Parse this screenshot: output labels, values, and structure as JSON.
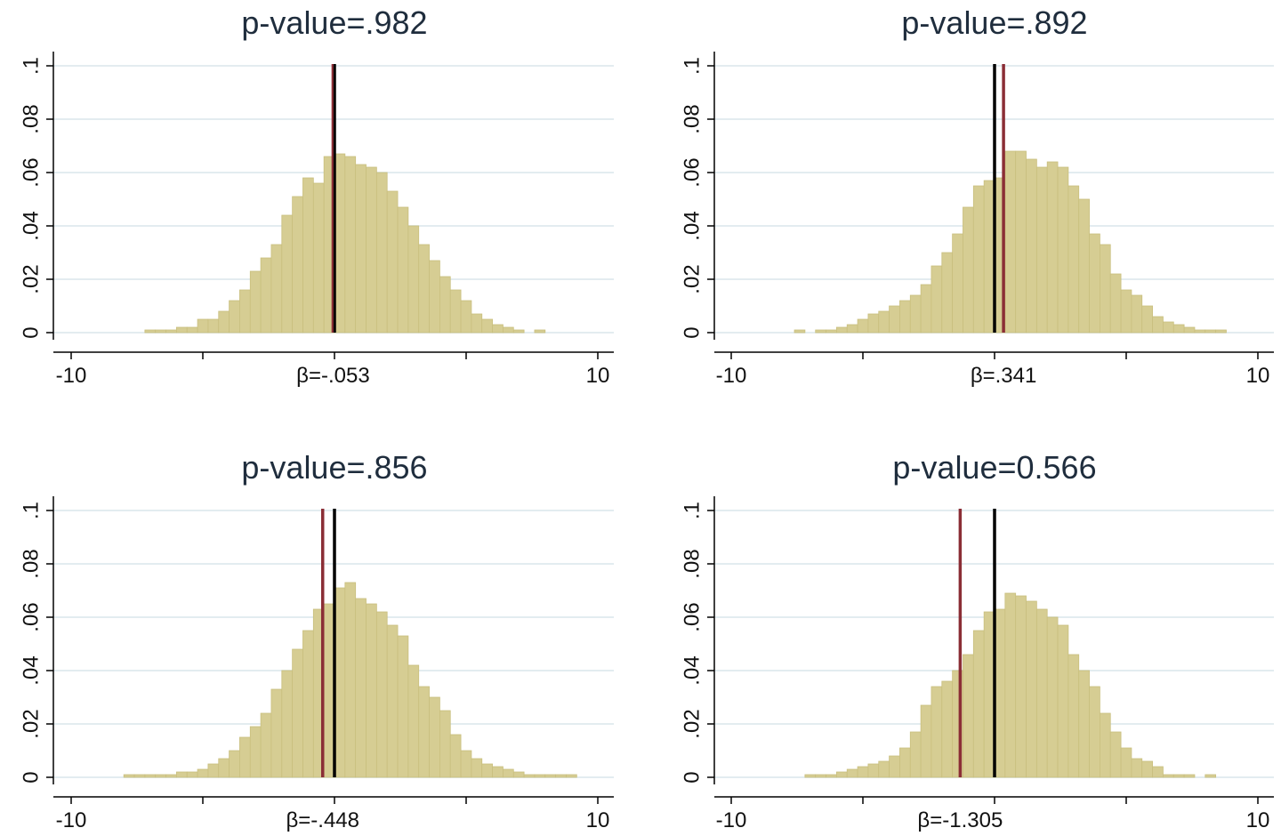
{
  "colors": {
    "bar_fill": "#d6cd93",
    "bar_stroke": "#c9bf7e",
    "beta_line": "#8b2e36",
    "reference_line": "#000000",
    "grid": "#e3ecf0",
    "title_text": "#1f2d3d"
  },
  "chart_data": [
    {
      "type": "bar",
      "title": "p-value=.982",
      "xlim": [
        -10,
        10
      ],
      "ylim": [
        0,
        0.1
      ],
      "xticks": [
        -10,
        -5,
        0,
        5,
        10
      ],
      "xtick_labels": [
        "-10",
        "",
        "",
        "",
        "10"
      ],
      "yticks": [
        0,
        0.02,
        0.04,
        0.06,
        0.08,
        0.1
      ],
      "ytick_labels": [
        "0",
        ".02",
        ".04",
        ".06",
        ".08",
        ".1"
      ],
      "beta_label": "β=-.053",
      "beta": -0.053,
      "reference": 0,
      "grid": true,
      "bin_width": 0.4,
      "bins": [
        [
          -7.2,
          0.001
        ],
        [
          -6.8,
          0.001
        ],
        [
          -6.4,
          0.001
        ],
        [
          -6.0,
          0.002
        ],
        [
          -5.6,
          0.002
        ],
        [
          -5.2,
          0.005
        ],
        [
          -4.8,
          0.005
        ],
        [
          -4.4,
          0.008
        ],
        [
          -4.0,
          0.012
        ],
        [
          -3.6,
          0.016
        ],
        [
          -3.2,
          0.023
        ],
        [
          -2.8,
          0.028
        ],
        [
          -2.4,
          0.033
        ],
        [
          -2.0,
          0.044
        ],
        [
          -1.6,
          0.051
        ],
        [
          -1.2,
          0.058
        ],
        [
          -0.8,
          0.056
        ],
        [
          -0.4,
          0.066
        ],
        [
          0.0,
          0.067
        ],
        [
          0.4,
          0.066
        ],
        [
          0.8,
          0.063
        ],
        [
          1.2,
          0.062
        ],
        [
          1.6,
          0.06
        ],
        [
          2.0,
          0.053
        ],
        [
          2.4,
          0.047
        ],
        [
          2.8,
          0.04
        ],
        [
          3.2,
          0.033
        ],
        [
          3.6,
          0.027
        ],
        [
          4.0,
          0.021
        ],
        [
          4.4,
          0.016
        ],
        [
          4.8,
          0.012
        ],
        [
          5.2,
          0.007
        ],
        [
          5.6,
          0.005
        ],
        [
          6.0,
          0.003
        ],
        [
          6.4,
          0.002
        ],
        [
          6.8,
          0.001
        ],
        [
          7.6,
          0.001
        ]
      ]
    },
    {
      "type": "bar",
      "title": "p-value=.892",
      "xlim": [
        -10,
        10
      ],
      "ylim": [
        0,
        0.1
      ],
      "xticks": [
        -10,
        -5,
        0,
        5,
        10
      ],
      "xtick_labels": [
        "-10",
        "",
        "",
        "",
        "10"
      ],
      "yticks": [
        0,
        0.02,
        0.04,
        0.06,
        0.08,
        0.1
      ],
      "ytick_labels": [
        "0",
        ".02",
        ".04",
        ".06",
        ".08",
        ".1"
      ],
      "beta_label": "β=.341",
      "beta": 0.341,
      "reference": 0,
      "grid": true,
      "bin_width": 0.4,
      "bins": [
        [
          -7.6,
          0.001
        ],
        [
          -6.8,
          0.001
        ],
        [
          -6.4,
          0.001
        ],
        [
          -6.0,
          0.002
        ],
        [
          -5.6,
          0.003
        ],
        [
          -5.2,
          0.005
        ],
        [
          -4.8,
          0.007
        ],
        [
          -4.4,
          0.008
        ],
        [
          -4.0,
          0.01
        ],
        [
          -3.6,
          0.012
        ],
        [
          -3.2,
          0.014
        ],
        [
          -2.8,
          0.018
        ],
        [
          -2.4,
          0.025
        ],
        [
          -2.0,
          0.03
        ],
        [
          -1.6,
          0.037
        ],
        [
          -1.2,
          0.047
        ],
        [
          -0.8,
          0.055
        ],
        [
          -0.4,
          0.057
        ],
        [
          0.0,
          0.058
        ],
        [
          0.4,
          0.068
        ],
        [
          0.8,
          0.068
        ],
        [
          1.2,
          0.065
        ],
        [
          1.6,
          0.062
        ],
        [
          2.0,
          0.064
        ],
        [
          2.4,
          0.062
        ],
        [
          2.8,
          0.055
        ],
        [
          3.2,
          0.05
        ],
        [
          3.6,
          0.037
        ],
        [
          4.0,
          0.033
        ],
        [
          4.4,
          0.022
        ],
        [
          4.8,
          0.016
        ],
        [
          5.2,
          0.014
        ],
        [
          5.6,
          0.01
        ],
        [
          6.0,
          0.006
        ],
        [
          6.4,
          0.004
        ],
        [
          6.8,
          0.003
        ],
        [
          7.2,
          0.002
        ],
        [
          7.6,
          0.001
        ],
        [
          8.0,
          0.001
        ],
        [
          8.4,
          0.001
        ]
      ]
    },
    {
      "type": "bar",
      "title": "p-value=.856",
      "xlim": [
        -10,
        10
      ],
      "ylim": [
        0,
        0.1
      ],
      "xticks": [
        -10,
        -5,
        0,
        5,
        10
      ],
      "xtick_labels": [
        "-10",
        "",
        "",
        "",
        "10"
      ],
      "yticks": [
        0,
        0.02,
        0.04,
        0.06,
        0.08,
        0.1
      ],
      "ytick_labels": [
        "0",
        ".02",
        ".04",
        ".06",
        ".08",
        ".1"
      ],
      "beta_label": "β=-.448",
      "beta": -0.448,
      "reference": 0,
      "grid": true,
      "bin_width": 0.4,
      "bins": [
        [
          -8.0,
          0.001
        ],
        [
          -7.6,
          0.001
        ],
        [
          -7.2,
          0.001
        ],
        [
          -6.8,
          0.001
        ],
        [
          -6.4,
          0.001
        ],
        [
          -6.0,
          0.002
        ],
        [
          -5.6,
          0.002
        ],
        [
          -5.2,
          0.003
        ],
        [
          -4.8,
          0.005
        ],
        [
          -4.4,
          0.007
        ],
        [
          -4.0,
          0.01
        ],
        [
          -3.6,
          0.015
        ],
        [
          -3.2,
          0.019
        ],
        [
          -2.8,
          0.024
        ],
        [
          -2.4,
          0.033
        ],
        [
          -2.0,
          0.04
        ],
        [
          -1.6,
          0.048
        ],
        [
          -1.2,
          0.055
        ],
        [
          -0.8,
          0.063
        ],
        [
          -0.4,
          0.065
        ],
        [
          0.0,
          0.071
        ],
        [
          0.4,
          0.073
        ],
        [
          0.8,
          0.067
        ],
        [
          1.2,
          0.065
        ],
        [
          1.6,
          0.062
        ],
        [
          2.0,
          0.057
        ],
        [
          2.4,
          0.053
        ],
        [
          2.8,
          0.042
        ],
        [
          3.2,
          0.034
        ],
        [
          3.6,
          0.03
        ],
        [
          4.0,
          0.025
        ],
        [
          4.4,
          0.016
        ],
        [
          4.8,
          0.01
        ],
        [
          5.2,
          0.007
        ],
        [
          5.6,
          0.005
        ],
        [
          6.0,
          0.004
        ],
        [
          6.4,
          0.003
        ],
        [
          6.8,
          0.002
        ],
        [
          7.2,
          0.001
        ],
        [
          7.6,
          0.001
        ],
        [
          8.0,
          0.001
        ],
        [
          8.4,
          0.001
        ],
        [
          8.8,
          0.001
        ]
      ]
    },
    {
      "type": "bar",
      "title": "p-value=0.566",
      "xlim": [
        -10,
        10
      ],
      "ylim": [
        0,
        0.1
      ],
      "xticks": [
        -10,
        -5,
        0,
        5,
        10
      ],
      "xtick_labels": [
        "-10",
        "",
        "",
        "",
        "10"
      ],
      "yticks": [
        0,
        0.02,
        0.04,
        0.06,
        0.08,
        0.1
      ],
      "ytick_labels": [
        "0",
        ".02",
        ".04",
        ".06",
        ".08",
        ".1"
      ],
      "beta_label": "β=-1.305",
      "beta": -1.305,
      "reference": 0,
      "grid": true,
      "bin_width": 0.4,
      "bins": [
        [
          -7.2,
          0.001
        ],
        [
          -6.8,
          0.001
        ],
        [
          -6.4,
          0.001
        ],
        [
          -6.0,
          0.002
        ],
        [
          -5.6,
          0.003
        ],
        [
          -5.2,
          0.004
        ],
        [
          -4.8,
          0.005
        ],
        [
          -4.4,
          0.006
        ],
        [
          -4.0,
          0.008
        ],
        [
          -3.6,
          0.011
        ],
        [
          -3.2,
          0.017
        ],
        [
          -2.8,
          0.027
        ],
        [
          -2.4,
          0.034
        ],
        [
          -2.0,
          0.036
        ],
        [
          -1.6,
          0.04
        ],
        [
          -1.2,
          0.046
        ],
        [
          -0.8,
          0.055
        ],
        [
          -0.4,
          0.062
        ],
        [
          0.0,
          0.063
        ],
        [
          0.4,
          0.069
        ],
        [
          0.8,
          0.068
        ],
        [
          1.2,
          0.066
        ],
        [
          1.6,
          0.063
        ],
        [
          2.0,
          0.06
        ],
        [
          2.4,
          0.057
        ],
        [
          2.8,
          0.046
        ],
        [
          3.2,
          0.04
        ],
        [
          3.6,
          0.034
        ],
        [
          4.0,
          0.024
        ],
        [
          4.4,
          0.017
        ],
        [
          4.8,
          0.011
        ],
        [
          5.2,
          0.007
        ],
        [
          5.6,
          0.006
        ],
        [
          6.0,
          0.004
        ],
        [
          6.4,
          0.001
        ],
        [
          6.8,
          0.001
        ],
        [
          7.2,
          0.001
        ],
        [
          8.0,
          0.001
        ]
      ]
    }
  ]
}
